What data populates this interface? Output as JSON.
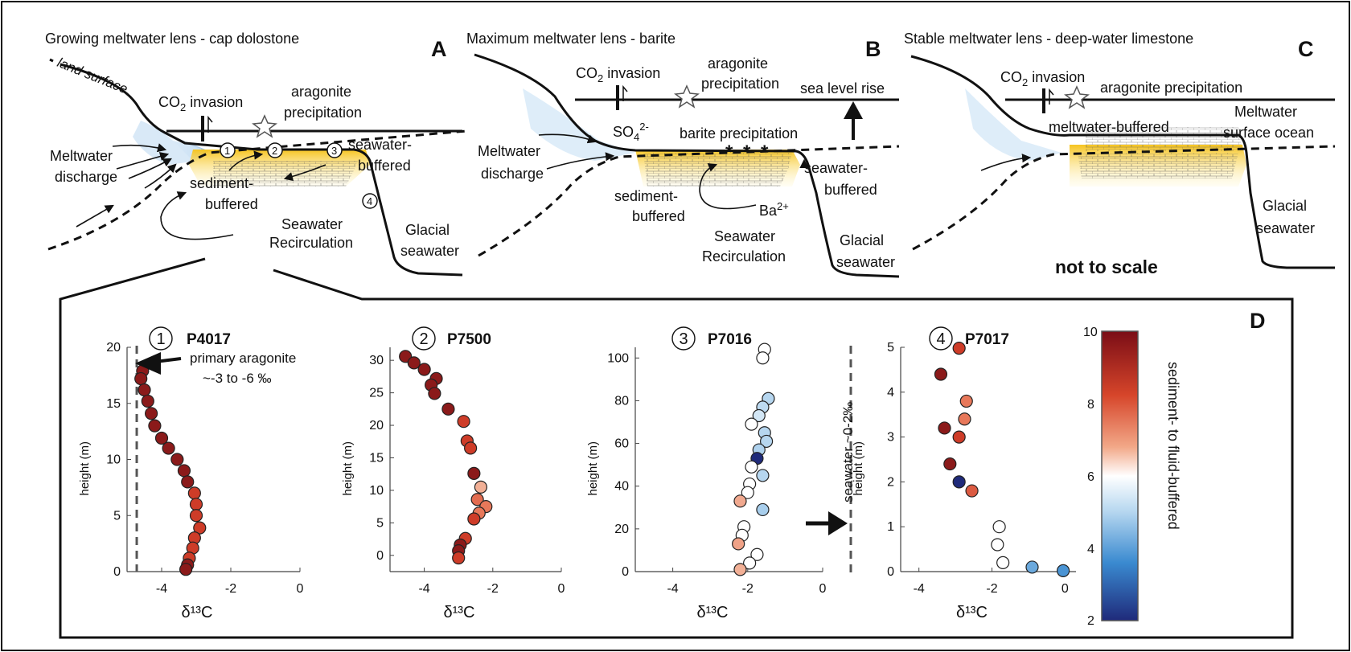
{
  "panels": {
    "A": {
      "letter": "A",
      "title": "Growing meltwater lens - cap dolostone",
      "land_surface": "land surface",
      "co2": "CO",
      "co2_sub": "2",
      "co2_rest": " invasion",
      "aragonite": [
        "aragonite",
        "precipitation"
      ],
      "seawater_buffered": [
        "seawater-",
        "buffered"
      ],
      "meltwater_discharge": [
        "Meltwater",
        "discharge"
      ],
      "sediment_buffered": [
        "sediment-",
        "buffered"
      ],
      "recirculation": [
        "Seawater",
        "Recirculation"
      ],
      "glacial": [
        "Glacial",
        "seawater"
      ],
      "sites": [
        "1",
        "2",
        "3",
        "4"
      ]
    },
    "B": {
      "letter": "B",
      "title": "Maximum meltwater lens - barite",
      "co2": "CO",
      "co2_sub": "2",
      "co2_rest": " invasion",
      "aragonite": [
        "aragonite",
        "precipitation"
      ],
      "sea_level": "sea level rise",
      "so4": "SO",
      "so4_sub": "4",
      "so4_sup": "2-",
      "barite": "barite precipitation",
      "meltwater_discharge": [
        "Meltwater",
        "discharge"
      ],
      "sediment_buffered": [
        "sediment-",
        "buffered"
      ],
      "seawater_buffered": [
        "seawater-",
        "buffered"
      ],
      "ba": "Ba",
      "ba_sup": "2+",
      "recirculation": [
        "Seawater",
        "Recirculation"
      ],
      "glacial": [
        "Glacial",
        "seawater"
      ]
    },
    "C": {
      "letter": "C",
      "title": "Stable meltwater lens - deep-water limestone",
      "co2": "CO",
      "co2_sub": "2",
      "co2_rest": " invasion",
      "aragonite": "aragonite precipitation",
      "meltwater_buffered": "meltwater-buffered",
      "meltwater_surface": [
        "Meltwater",
        "surface ocean"
      ],
      "glacial": [
        "Glacial",
        "seawater"
      ],
      "scale_note": "not to scale"
    }
  },
  "panel_d": {
    "letter": "D",
    "primary_aragonite": [
      "primary aragonite",
      "~-3 to -6 ‰"
    ],
    "seawater_note": "seawater ~0-2‰",
    "colorbar": {
      "label": "sediment- to fluid-buffered",
      "ticks": [
        "10",
        "8",
        "6",
        "4",
        "2"
      ],
      "min": 2,
      "max": 10
    },
    "colors": {
      "dark_red": "#8b1a1a",
      "red": "#d6452a",
      "salmon": "#f0a080",
      "white": "#ffffff",
      "light_blue": "#b8d8f0",
      "blue": "#3a8ad0",
      "navy": "#1f2a7a"
    }
  },
  "chart_data": [
    {
      "type": "scatter",
      "site": "1",
      "title": "P4017",
      "xlabel": "δ¹³C",
      "ylabel": "height (m)",
      "xlim": [
        -5,
        0
      ],
      "ylim": [
        0,
        20
      ],
      "xticks": [
        "-4",
        "-2",
        "0"
      ],
      "yticks": [
        "0",
        "5",
        "10",
        "15",
        "20"
      ],
      "points": [
        {
          "x": -4.55,
          "y": 17.9,
          "c": 10
        },
        {
          "x": -4.6,
          "y": 17.2,
          "c": 10
        },
        {
          "x": -4.5,
          "y": 16.2,
          "c": 10
        },
        {
          "x": -4.4,
          "y": 15.2,
          "c": 10
        },
        {
          "x": -4.3,
          "y": 14.1,
          "c": 10
        },
        {
          "x": -4.2,
          "y": 13.0,
          "c": 10
        },
        {
          "x": -4.0,
          "y": 11.9,
          "c": 10
        },
        {
          "x": -3.8,
          "y": 11.0,
          "c": 10
        },
        {
          "x": -3.55,
          "y": 10.0,
          "c": 10
        },
        {
          "x": -3.35,
          "y": 9.0,
          "c": 10
        },
        {
          "x": -3.25,
          "y": 8.0,
          "c": 10
        },
        {
          "x": -3.05,
          "y": 7.0,
          "c": 9
        },
        {
          "x": -3.0,
          "y": 6.0,
          "c": 9
        },
        {
          "x": -3.0,
          "y": 5.0,
          "c": 9
        },
        {
          "x": -2.9,
          "y": 3.9,
          "c": 9
        },
        {
          "x": -3.05,
          "y": 3.0,
          "c": 9
        },
        {
          "x": -3.1,
          "y": 2.1,
          "c": 9
        },
        {
          "x": -3.2,
          "y": 1.2,
          "c": 9
        },
        {
          "x": -3.25,
          "y": 0.6,
          "c": 10
        },
        {
          "x": -3.3,
          "y": 0.2,
          "c": 10
        }
      ]
    },
    {
      "type": "scatter",
      "site": "2",
      "title": "P7500",
      "xlabel": "δ¹³C",
      "ylabel": "height (m)",
      "xlim": [
        -5,
        0
      ],
      "ylim": [
        -2.5,
        32
      ],
      "xticks": [
        "-4",
        "-2",
        "0"
      ],
      "yticks": [
        "0",
        "5",
        "10",
        "15",
        "20",
        "25",
        "30"
      ],
      "points": [
        {
          "x": -4.55,
          "y": 30.6,
          "c": 10
        },
        {
          "x": -4.3,
          "y": 29.6,
          "c": 10
        },
        {
          "x": -4.0,
          "y": 28.6,
          "c": 10
        },
        {
          "x": -3.65,
          "y": 27.2,
          "c": 10
        },
        {
          "x": -3.8,
          "y": 26.2,
          "c": 10
        },
        {
          "x": -3.7,
          "y": 24.9,
          "c": 10
        },
        {
          "x": -3.3,
          "y": 22.5,
          "c": 10
        },
        {
          "x": -2.85,
          "y": 20.6,
          "c": 9
        },
        {
          "x": -2.75,
          "y": 17.6,
          "c": 9
        },
        {
          "x": -2.65,
          "y": 16.5,
          "c": 9
        },
        {
          "x": -2.55,
          "y": 12.6,
          "c": 10
        },
        {
          "x": -2.35,
          "y": 10.5,
          "c": 7.2
        },
        {
          "x": -2.45,
          "y": 8.6,
          "c": 8.2
        },
        {
          "x": -2.2,
          "y": 7.5,
          "c": 8
        },
        {
          "x": -2.4,
          "y": 6.5,
          "c": 8
        },
        {
          "x": -2.55,
          "y": 5.6,
          "c": 9
        },
        {
          "x": -2.8,
          "y": 2.6,
          "c": 9
        },
        {
          "x": -2.95,
          "y": 1.6,
          "c": 10
        },
        {
          "x": -3.0,
          "y": 0.7,
          "c": 10
        },
        {
          "x": -3.0,
          "y": -0.4,
          "c": 9
        }
      ]
    },
    {
      "type": "scatter",
      "site": "3",
      "title": "P7016",
      "xlabel": "δ¹³C",
      "ylabel": "height (m)",
      "xlim": [
        -5,
        0
      ],
      "ylim": [
        0,
        105
      ],
      "xticks": [
        "-4",
        "-2",
        "0"
      ],
      "yticks": [
        "0",
        "20",
        "40",
        "60",
        "80",
        "100"
      ],
      "points": [
        {
          "x": -1.55,
          "y": 104,
          "c": 6
        },
        {
          "x": -1.6,
          "y": 100,
          "c": 6
        },
        {
          "x": -1.45,
          "y": 81,
          "c": 4.6
        },
        {
          "x": -1.6,
          "y": 77,
          "c": 4.7
        },
        {
          "x": -1.7,
          "y": 73,
          "c": 5
        },
        {
          "x": -1.9,
          "y": 69,
          "c": 6
        },
        {
          "x": -1.55,
          "y": 65,
          "c": 4.6
        },
        {
          "x": -1.5,
          "y": 61,
          "c": 4.6
        },
        {
          "x": -1.7,
          "y": 57,
          "c": 4.5
        },
        {
          "x": -1.75,
          "y": 53,
          "c": 2
        },
        {
          "x": -1.9,
          "y": 49,
          "c": 6
        },
        {
          "x": -1.6,
          "y": 45,
          "c": 4.6
        },
        {
          "x": -1.95,
          "y": 41,
          "c": 6
        },
        {
          "x": -2.0,
          "y": 37,
          "c": 6
        },
        {
          "x": -2.2,
          "y": 33,
          "c": 7.3
        },
        {
          "x": -1.6,
          "y": 29,
          "c": 4.4
        },
        {
          "x": -2.1,
          "y": 21,
          "c": 6
        },
        {
          "x": -2.15,
          "y": 17,
          "c": 6
        },
        {
          "x": -2.25,
          "y": 13,
          "c": 7.4
        },
        {
          "x": -1.75,
          "y": 8,
          "c": 6
        },
        {
          "x": -1.95,
          "y": 4,
          "c": 6
        },
        {
          "x": -2.2,
          "y": 1,
          "c": 7.2
        }
      ]
    },
    {
      "type": "scatter",
      "site": "4",
      "title": "P7017",
      "xlabel": "δ¹³C",
      "ylabel": "height (m)",
      "xlim": [
        -4.5,
        0.3
      ],
      "ylim": [
        0,
        5
      ],
      "xticks": [
        "-4",
        "-2",
        "0"
      ],
      "yticks": [
        "0",
        "1",
        "2",
        "3",
        "4",
        "5"
      ],
      "points": [
        {
          "x": -2.9,
          "y": 4.98,
          "c": 9
        },
        {
          "x": -3.4,
          "y": 4.4,
          "c": 10
        },
        {
          "x": -2.7,
          "y": 3.8,
          "c": 8
        },
        {
          "x": -2.75,
          "y": 3.4,
          "c": 8
        },
        {
          "x": -3.3,
          "y": 3.2,
          "c": 10
        },
        {
          "x": -2.9,
          "y": 3.0,
          "c": 9
        },
        {
          "x": -3.15,
          "y": 2.4,
          "c": 10
        },
        {
          "x": -2.9,
          "y": 2.0,
          "c": 2
        },
        {
          "x": -2.55,
          "y": 1.8,
          "c": 8.5
        },
        {
          "x": -1.8,
          "y": 1.0,
          "c": 6
        },
        {
          "x": -1.85,
          "y": 0.6,
          "c": 6
        },
        {
          "x": -1.7,
          "y": 0.2,
          "c": 6
        },
        {
          "x": -0.9,
          "y": 0.1,
          "c": 3.6
        },
        {
          "x": -0.05,
          "y": 0.02,
          "c": 3.2
        }
      ]
    }
  ]
}
